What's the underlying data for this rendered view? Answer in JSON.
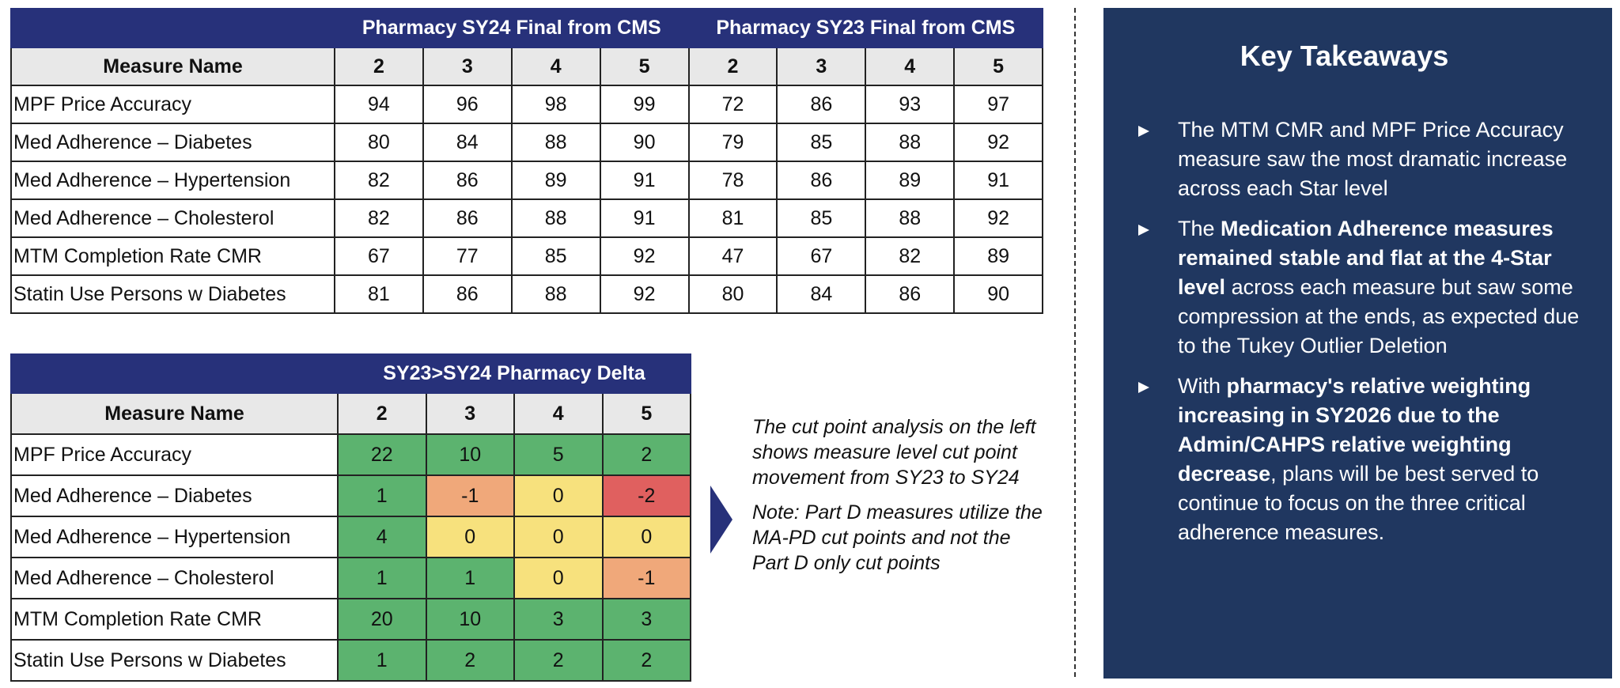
{
  "pharmacy_table": {
    "group_headers": [
      "Pharmacy SY24 Final from CMS",
      "Pharmacy SY23 Final from CMS"
    ],
    "columns": [
      "Measure Name",
      2,
      3,
      4,
      5,
      2,
      3,
      4,
      5
    ],
    "rows": [
      [
        "MPF Price Accuracy",
        94,
        96,
        98,
        99,
        72,
        86,
        93,
        97
      ],
      [
        "Med Adherence – Diabetes",
        80,
        84,
        88,
        90,
        79,
        85,
        88,
        92
      ],
      [
        "Med Adherence – Hypertension",
        82,
        86,
        89,
        91,
        78,
        86,
        89,
        91
      ],
      [
        "Med Adherence – Cholesterol",
        82,
        86,
        88,
        91,
        81,
        85,
        88,
        92
      ],
      [
        "MTM Completion Rate CMR",
        67,
        77,
        85,
        92,
        47,
        67,
        82,
        89
      ],
      [
        "Statin Use Persons w Diabetes",
        81,
        86,
        88,
        92,
        80,
        84,
        86,
        90
      ]
    ]
  },
  "delta_table": {
    "group_header": "SY23>SY24 Pharmacy Delta",
    "columns": [
      "Measure Name",
      2,
      3,
      4,
      5
    ],
    "rows": [
      [
        "MPF Price Accuracy",
        22,
        10,
        5,
        2
      ],
      [
        "Med Adherence – Diabetes",
        1,
        -1,
        0,
        -2
      ],
      [
        "Med Adherence – Hypertension",
        4,
        0,
        0,
        0
      ],
      [
        "Med Adherence – Cholesterol",
        1,
        1,
        0,
        -1
      ],
      [
        "MTM Completion Rate CMR",
        20,
        10,
        3,
        3
      ],
      [
        "Statin Use Persons w Diabetes",
        1,
        2,
        2,
        2
      ]
    ]
  },
  "note": {
    "paragraphs": [
      "The cut point analysis on the left shows measure level cut point movement from SY23 to SY24",
      "Note: Part D measures utilize the MA-PD cut points and not the Part D only cut points"
    ]
  },
  "key_takeaways": {
    "title": "Key Takeaways",
    "bullets": [
      [
        {
          "text": "The MTM CMR and MPF Price Accuracy measure saw the most dramatic increase across each Star level",
          "bold": false
        }
      ],
      [
        {
          "text": "The ",
          "bold": false
        },
        {
          "text": "Medication Adherence measures remained stable and flat at the 4-Star level",
          "bold": true
        },
        {
          "text": " across each measure but saw some compression at the ends, as expected due to the Tukey Outlier Deletion",
          "bold": false
        }
      ],
      [
        {
          "text": "With ",
          "bold": false
        },
        {
          "text": "pharmacy's relative weighting increasing in SY2026 due to the Admin/CAHPS relative weighting decrease",
          "bold": true
        },
        {
          "text": ", plans will be best served to continue to focus on the three critical adherence measures.",
          "bold": false
        }
      ]
    ]
  }
}
